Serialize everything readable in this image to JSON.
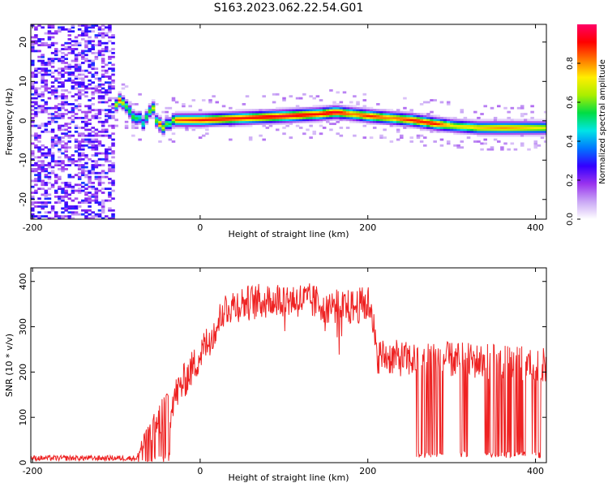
{
  "title": "S163.2023.062.22.54.G01",
  "chart_data": [
    {
      "type": "heatmap",
      "xlabel": "Height of straight line (km)",
      "ylabel": "Frequency (Hz)",
      "xlim": [
        -202,
        413
      ],
      "ylim": [
        -25,
        24.5
      ],
      "xticks": [
        -200,
        0,
        200,
        400
      ],
      "yticks": [
        -20,
        -10,
        0,
        10,
        20
      ],
      "colorbar": {
        "label": "Normalized spectral amplitude",
        "range": [
          0,
          1
        ],
        "ticks": [
          0.0,
          0.2,
          0.4,
          0.6,
          0.8
        ],
        "tick_labels": [
          "0.0",
          "0.2",
          "0.4",
          "0.6",
          "0.8"
        ]
      },
      "noise_region": {
        "x": [
          -202,
          -105
        ],
        "level": 0.2
      },
      "ridge": {
        "x": [
          -105,
          -98,
          -92,
          -85,
          -80,
          -75,
          -70,
          -63,
          -58,
          -55,
          -50,
          -46,
          -42,
          -38,
          -35,
          -30,
          0,
          50,
          100,
          140,
          160,
          180,
          200,
          225,
          250,
          280,
          300,
          330,
          360,
          413
        ],
        "freq": [
          3,
          5,
          4,
          2,
          0,
          1,
          -1,
          2,
          3,
          0,
          -1,
          -2,
          -1,
          -1,
          0,
          0,
          0,
          0.5,
          1,
          1.5,
          2,
          1.5,
          1,
          0.5,
          0,
          -1,
          -1.5,
          -2,
          -2,
          -2
        ],
        "amplitude": [
          0.55,
          0.85,
          0.6,
          0.55,
          0.6,
          0.5,
          0.5,
          0.6,
          0.7,
          0.55,
          0.85,
          0.7,
          0.6,
          0.55,
          0.6,
          0.85,
          0.9,
          0.9,
          0.95,
          0.9,
          0.95,
          0.8,
          0.9,
          0.8,
          0.9,
          0.9,
          0.7,
          0.75,
          0.8,
          0.7
        ]
      },
      "colorscale": [
        "#ffffff",
        "#c9a6f5",
        "#9933ee",
        "#3300ff",
        "#0077ff",
        "#00e5e5",
        "#00dd44",
        "#aaee00",
        "#ffee00",
        "#ff7700",
        "#ff0000",
        "#ff0066"
      ]
    },
    {
      "type": "line",
      "xlabel": "Height of straight line (km)",
      "ylabel": "SNR (10 * v/v)",
      "xlim": [
        -202,
        413
      ],
      "ylim": [
        0,
        430
      ],
      "xticks": [
        -200,
        0,
        200,
        400
      ],
      "yticks": [
        0,
        100,
        200,
        300,
        400
      ],
      "color": "#ee2222",
      "envelope": {
        "x": [
          -202,
          -75,
          -70,
          -60,
          -50,
          -40,
          -30,
          -20,
          -10,
          0,
          10,
          20,
          30,
          50,
          80,
          100,
          130,
          150,
          180,
          200,
          205,
          210,
          250,
          300,
          350,
          400,
          413
        ],
        "y": [
          10,
          10,
          30,
          55,
          75,
          105,
          135,
          165,
          195,
          225,
          260,
          290,
          330,
          340,
          345,
          350,
          345,
          335,
          330,
          340,
          330,
          225,
          215,
          215,
          210,
          205,
          205
        ]
      },
      "dropouts": [
        [
          258,
          292
        ],
        [
          310,
          320
        ],
        [
          338,
          388
        ],
        [
          396,
          406
        ]
      ]
    }
  ]
}
